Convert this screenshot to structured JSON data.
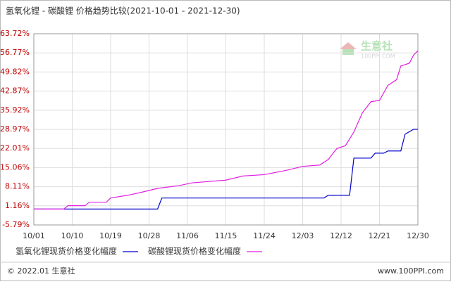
{
  "chart_data": {
    "type": "line",
    "title": "氢氧化锂 - 碳酸锂 价格趋势比较(2021-10-01 - 2021-12-30)",
    "xlim": [
      "10/01",
      "12/30"
    ],
    "xticks": [
      "10/01",
      "10/10",
      "10/19",
      "10/28",
      "11/06",
      "11/15",
      "11/24",
      "12/03",
      "12/12",
      "12/21",
      "12/30"
    ],
    "ylim": [
      -5.79,
      63.72
    ],
    "yticks": [
      {
        "value": -5.79,
        "label": "-5.79%"
      },
      {
        "value": 1.16,
        "label": "1.16%"
      },
      {
        "value": 8.11,
        "label": "8.11%"
      },
      {
        "value": 15.06,
        "label": "15.06%"
      },
      {
        "value": 22.01,
        "label": "22.01%"
      },
      {
        "value": 28.97,
        "label": "28.97%"
      },
      {
        "value": 35.92,
        "label": "35.92%"
      },
      {
        "value": 42.87,
        "label": "42.87%"
      },
      {
        "value": 49.82,
        "label": "49.82%"
      },
      {
        "value": 56.77,
        "label": "56.77%"
      },
      {
        "value": 63.72,
        "label": "63.72%"
      }
    ],
    "grid": true,
    "series": [
      {
        "name": "氢氧化锂现货价格变化幅度",
        "color": "#0000cc",
        "x": [
          "10/01",
          "10/30",
          "10/31",
          "12/08",
          "12/09",
          "12/14",
          "12/15",
          "12/19",
          "12/20",
          "12/22",
          "12/23",
          "12/26",
          "12/27",
          "12/29",
          "12/30"
        ],
        "values": [
          0,
          0,
          4,
          4,
          5,
          5,
          18.5,
          18.5,
          20.3,
          20.3,
          21.1,
          21.1,
          27.2,
          29,
          29
        ]
      },
      {
        "name": "碳酸锂现货价格变化幅度",
        "color": "#e020e0",
        "x": [
          "10/01",
          "10/08",
          "10/09",
          "10/13",
          "10/14",
          "10/18",
          "10/19",
          "10/23",
          "10/26",
          "10/30",
          "11/04",
          "11/07",
          "11/15",
          "11/19",
          "11/24",
          "11/29",
          "12/03",
          "12/07",
          "12/09",
          "12/11",
          "12/13",
          "12/15",
          "12/17",
          "12/19",
          "12/21",
          "12/23",
          "12/25",
          "12/26",
          "12/28",
          "12/29",
          "12/30"
        ],
        "values": [
          0,
          0,
          1.2,
          1.2,
          2.5,
          2.5,
          4,
          5,
          6,
          7.5,
          8.5,
          9.5,
          10.5,
          12,
          12.5,
          14,
          15.5,
          16,
          18,
          22,
          23,
          28,
          35,
          39,
          39.5,
          45,
          47,
          52,
          53,
          56,
          57.5
        ]
      }
    ]
  },
  "watermark": {
    "name": "生意社",
    "site": "100PPI.COM"
  },
  "footer": {
    "copyright": "© 2022.01 生意社",
    "site": "www.100PPI.com"
  }
}
